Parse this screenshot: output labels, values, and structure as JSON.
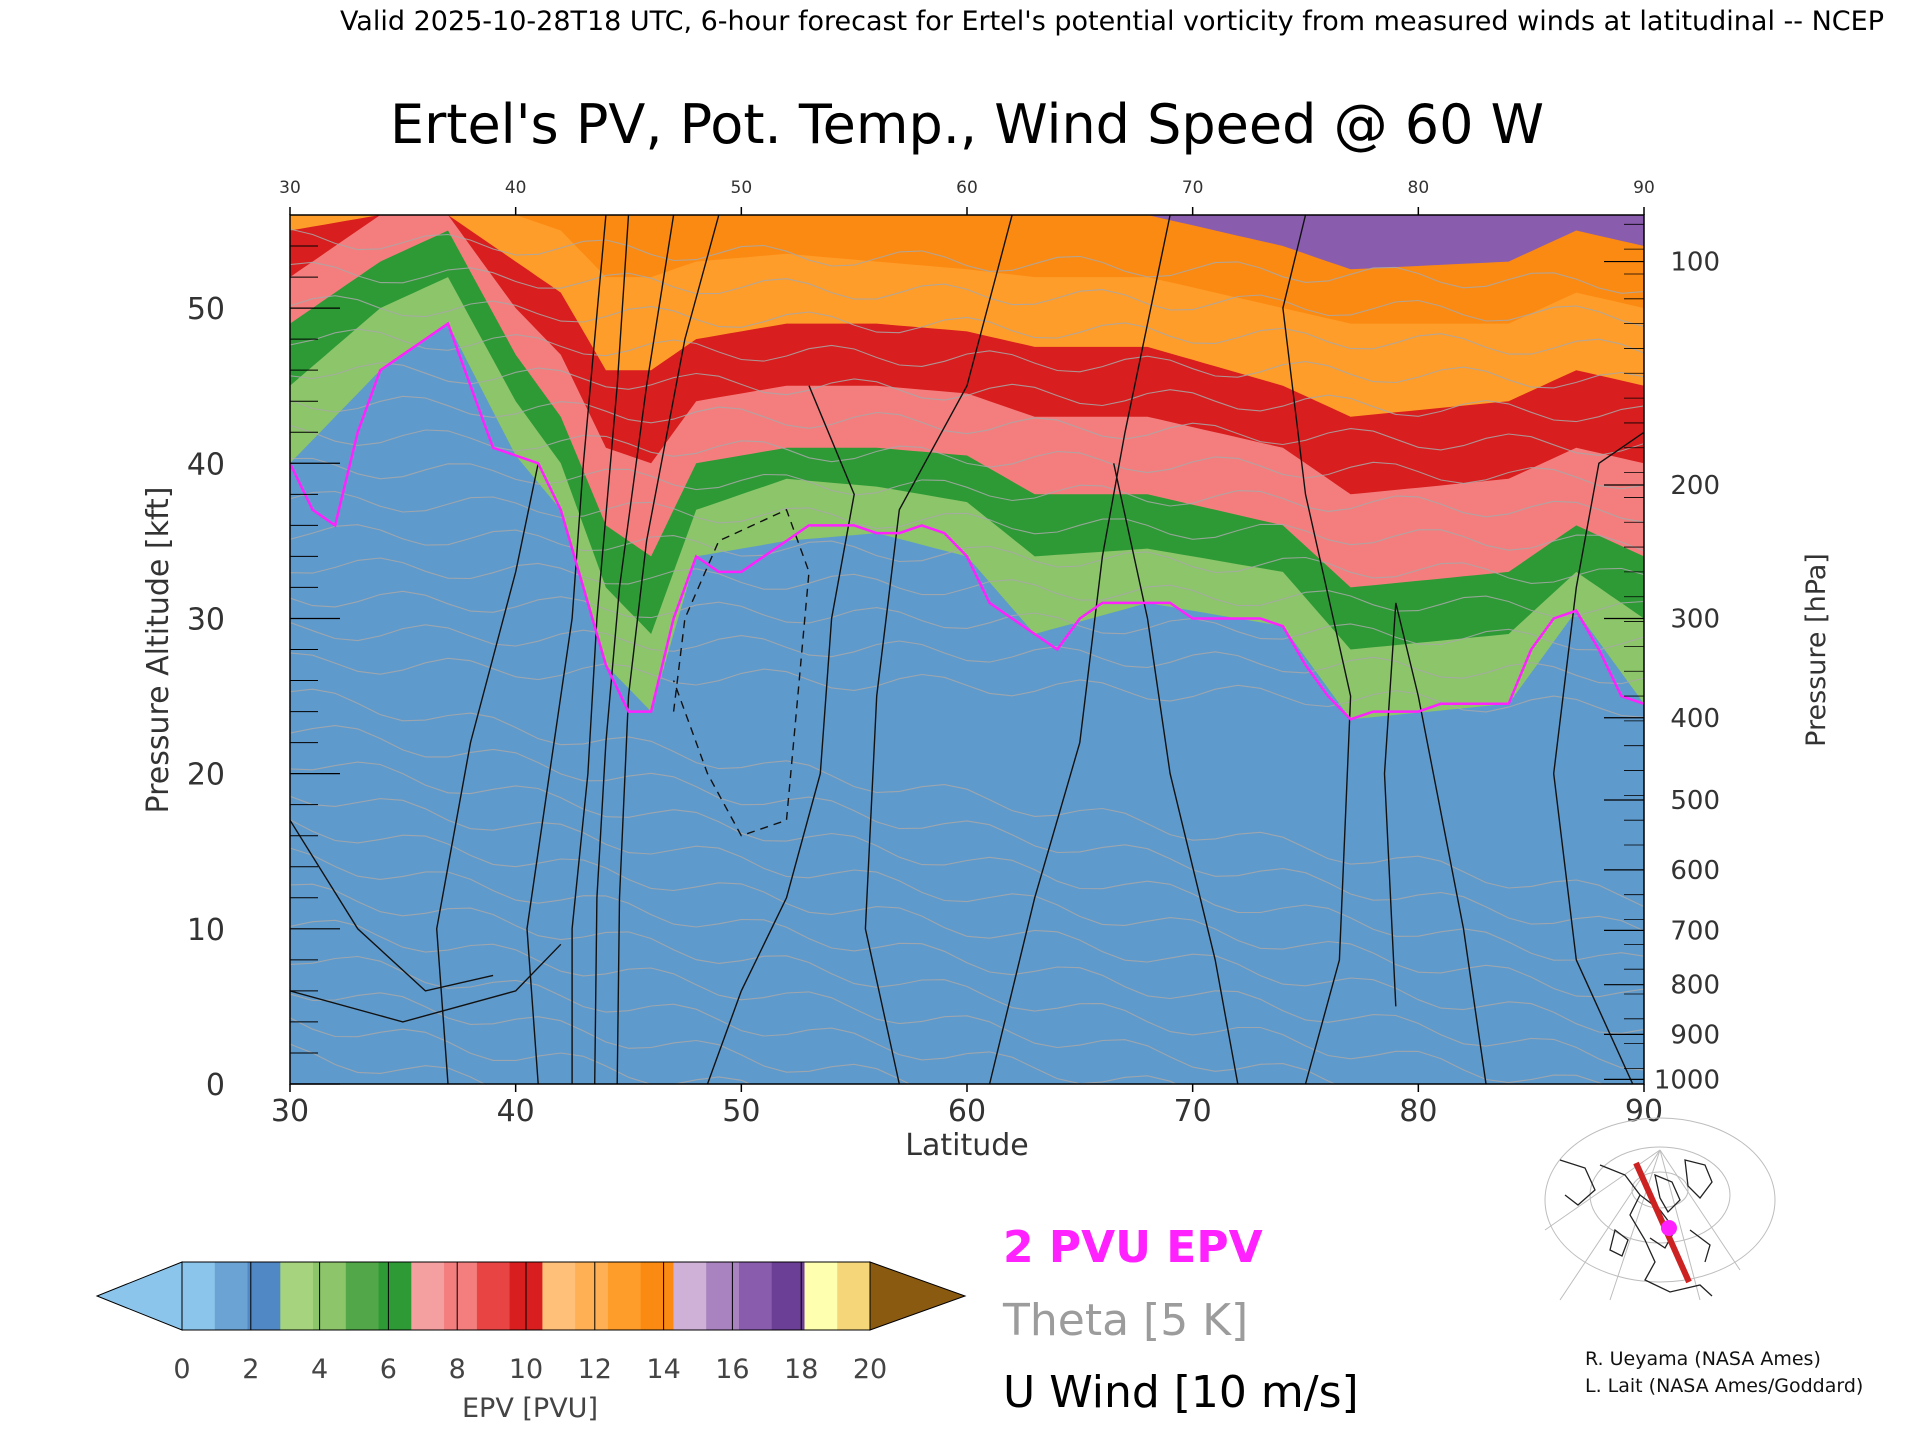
{
  "header": {
    "valid_line": "Valid 2025-10-28T18 UTC, 6-hour forecast for Ertel's potential vorticity from measured winds at latitudinal -- NCEP"
  },
  "chart_data": {
    "type": "heatmap",
    "title": "Ertel's PV, Pot. Temp., Wind Speed @ 60 W",
    "xlabel": "Latitude",
    "ylabel_left": "Pressure Altitude [kft]",
    "ylabel_right": "Pressure [hPa]",
    "xlim": [
      30,
      90
    ],
    "ylim": [
      0,
      56
    ],
    "x_ticks": [
      "30",
      "40",
      "50",
      "60",
      "70",
      "80",
      "90"
    ],
    "y_ticks": [
      "0",
      "10",
      "20",
      "30",
      "40",
      "50"
    ],
    "pressure_ticks": [
      {
        "label": "100",
        "kft": 53.0
      },
      {
        "label": "200",
        "kft": 38.6
      },
      {
        "label": "300",
        "kft": 30.0
      },
      {
        "label": "400",
        "kft": 23.6
      },
      {
        "label": "500",
        "kft": 18.3
      },
      {
        "label": "600",
        "kft": 13.8
      },
      {
        "label": "700",
        "kft": 9.9
      },
      {
        "label": "800",
        "kft": 6.4
      },
      {
        "label": "900",
        "kft": 3.2
      },
      {
        "label": "1000",
        "kft": 0.3
      }
    ],
    "tropopause_2pvu_kft": [
      [
        30,
        40
      ],
      [
        31,
        37
      ],
      [
        32,
        36
      ],
      [
        33,
        42
      ],
      [
        34,
        46
      ],
      [
        35,
        47
      ],
      [
        36,
        48
      ],
      [
        37,
        49
      ],
      [
        38,
        45
      ],
      [
        39,
        41
      ],
      [
        40,
        40.5
      ],
      [
        41,
        40
      ],
      [
        42,
        37
      ],
      [
        43,
        32
      ],
      [
        44,
        27
      ],
      [
        45,
        24
      ],
      [
        46,
        24
      ],
      [
        47,
        30
      ],
      [
        48,
        34
      ],
      [
        49,
        33
      ],
      [
        50,
        33
      ],
      [
        51,
        34
      ],
      [
        52,
        35
      ],
      [
        53,
        36
      ],
      [
        54,
        36
      ],
      [
        55,
        36
      ],
      [
        56,
        35.5
      ],
      [
        57,
        35.5
      ],
      [
        58,
        36
      ],
      [
        59,
        35.5
      ],
      [
        60,
        34
      ],
      [
        61,
        31
      ],
      [
        62,
        30
      ],
      [
        63,
        29
      ],
      [
        64,
        28
      ],
      [
        65,
        30
      ],
      [
        66,
        31
      ],
      [
        67,
        31
      ],
      [
        68,
        31
      ],
      [
        69,
        31
      ],
      [
        70,
        30
      ],
      [
        71,
        30
      ],
      [
        72,
        30
      ],
      [
        73,
        30
      ],
      [
        74,
        29.5
      ],
      [
        75,
        27
      ],
      [
        76,
        25
      ],
      [
        77,
        23.5
      ],
      [
        78,
        24
      ],
      [
        79,
        24
      ],
      [
        80,
        24
      ],
      [
        81,
        24.5
      ],
      [
        82,
        24.5
      ],
      [
        83,
        24.5
      ],
      [
        84,
        24.5
      ],
      [
        85,
        28
      ],
      [
        86,
        30
      ],
      [
        87,
        30.5
      ],
      [
        88,
        28
      ],
      [
        89,
        25
      ],
      [
        90,
        24.5
      ]
    ],
    "epv_layer_tops_kft": [
      {
        "pvu": 2,
        "points": [
          [
            30,
            40
          ],
          [
            34,
            46
          ],
          [
            37,
            49
          ],
          [
            40,
            40.5
          ],
          [
            42,
            37
          ],
          [
            44,
            27
          ],
          [
            46,
            24
          ],
          [
            48,
            34
          ],
          [
            52,
            35
          ],
          [
            56,
            35.5
          ],
          [
            60,
            34
          ],
          [
            63,
            29
          ],
          [
            68,
            31
          ],
          [
            74,
            29.5
          ],
          [
            77,
            23.5
          ],
          [
            84,
            24.5
          ],
          [
            87,
            30.5
          ],
          [
            90,
            24.5
          ]
        ]
      },
      {
        "pvu": 4,
        "points": [
          [
            30,
            45
          ],
          [
            34,
            50
          ],
          [
            37,
            52
          ],
          [
            40,
            44
          ],
          [
            42,
            40
          ],
          [
            44,
            32
          ],
          [
            46,
            29
          ],
          [
            48,
            37
          ],
          [
            52,
            39
          ],
          [
            56,
            38.5
          ],
          [
            60,
            37.5
          ],
          [
            63,
            34
          ],
          [
            68,
            34.5
          ],
          [
            74,
            33
          ],
          [
            77,
            28
          ],
          [
            84,
            29
          ],
          [
            87,
            33
          ],
          [
            90,
            30
          ]
        ]
      },
      {
        "pvu": 6,
        "points": [
          [
            30,
            49
          ],
          [
            34,
            53
          ],
          [
            37,
            55
          ],
          [
            40,
            47
          ],
          [
            42,
            43
          ],
          [
            44,
            36
          ],
          [
            46,
            34
          ],
          [
            48,
            40
          ],
          [
            52,
            41
          ],
          [
            56,
            41
          ],
          [
            60,
            40.5
          ],
          [
            63,
            38
          ],
          [
            68,
            38
          ],
          [
            74,
            36
          ],
          [
            77,
            32
          ],
          [
            84,
            33
          ],
          [
            87,
            36
          ],
          [
            90,
            34
          ]
        ]
      },
      {
        "pvu": 8,
        "points": [
          [
            30,
            52
          ],
          [
            34,
            56
          ],
          [
            37,
            56
          ],
          [
            40,
            50
          ],
          [
            42,
            47
          ],
          [
            44,
            41
          ],
          [
            46,
            40
          ],
          [
            48,
            44
          ],
          [
            52,
            45
          ],
          [
            56,
            45
          ],
          [
            60,
            44.5
          ],
          [
            63,
            43
          ],
          [
            68,
            43
          ],
          [
            74,
            41
          ],
          [
            77,
            38
          ],
          [
            84,
            39
          ],
          [
            87,
            41
          ],
          [
            90,
            40
          ]
        ]
      },
      {
        "pvu": 10,
        "points": [
          [
            30,
            55
          ],
          [
            34,
            56
          ],
          [
            37,
            56
          ],
          [
            40,
            53
          ],
          [
            42,
            51
          ],
          [
            44,
            46
          ],
          [
            46,
            46
          ],
          [
            48,
            48
          ],
          [
            52,
            49
          ],
          [
            56,
            49
          ],
          [
            60,
            48.5
          ],
          [
            63,
            47.5
          ],
          [
            68,
            47.5
          ],
          [
            74,
            45
          ],
          [
            77,
            43
          ],
          [
            84,
            44
          ],
          [
            87,
            46
          ],
          [
            90,
            45
          ]
        ]
      },
      {
        "pvu": 12,
        "points": [
          [
            30,
            56
          ],
          [
            34,
            56
          ],
          [
            37,
            56
          ],
          [
            40,
            56
          ],
          [
            42,
            55
          ],
          [
            44,
            52
          ],
          [
            46,
            52
          ],
          [
            48,
            53
          ],
          [
            52,
            53.5
          ],
          [
            56,
            53
          ],
          [
            60,
            52.5
          ],
          [
            63,
            52
          ],
          [
            68,
            52
          ],
          [
            74,
            50
          ],
          [
            77,
            49
          ],
          [
            84,
            49
          ],
          [
            87,
            51
          ],
          [
            90,
            50
          ]
        ]
      },
      {
        "pvu": 16,
        "points": [
          [
            30,
            56
          ],
          [
            40,
            56
          ],
          [
            44,
            56
          ],
          [
            52,
            56
          ],
          [
            60,
            56
          ],
          [
            68,
            56
          ],
          [
            74,
            54
          ],
          [
            77,
            52.5
          ],
          [
            84,
            53
          ],
          [
            87,
            55
          ],
          [
            90,
            54
          ]
        ]
      }
    ],
    "colorbar": {
      "label": "EPV [PVU]",
      "ticks": [
        "0",
        "2",
        "4",
        "6",
        "8",
        "10",
        "12",
        "14",
        "16",
        "18",
        "20"
      ],
      "colors": [
        "#8bc5ec",
        "#6aa3d4",
        "#4f88c4",
        "#a6d47e",
        "#8cc56a",
        "#52a848",
        "#2d9a35",
        "#f4a0a0",
        "#f47e7e",
        "#e84444",
        "#d81e1e",
        "#ffc07a",
        "#ffb054",
        "#ff9d2a",
        "#fb8a12",
        "#cfb0d6",
        "#a983c0",
        "#8a5cae",
        "#6c3f96",
        "#ffffb0",
        "#f5d77a"
      ],
      "under_color": "#8bc5ec",
      "over_color": "#8a5a10"
    },
    "legend": {
      "pvu": "2 PVU EPV",
      "theta": "Theta [5 K]",
      "uwind": "U Wind [10 m/s]"
    }
  },
  "credits": {
    "line1": "R. Ueyama (NASA Ames)",
    "line2": "L. Lait (NASA Ames/Goddard)"
  },
  "colors": {
    "pvu_line": "#ff22ff",
    "theta_text": "#9c9c9c",
    "wind_line": "#111111",
    "section_line": "#cc2222",
    "location_dot": "#ff22ff"
  }
}
